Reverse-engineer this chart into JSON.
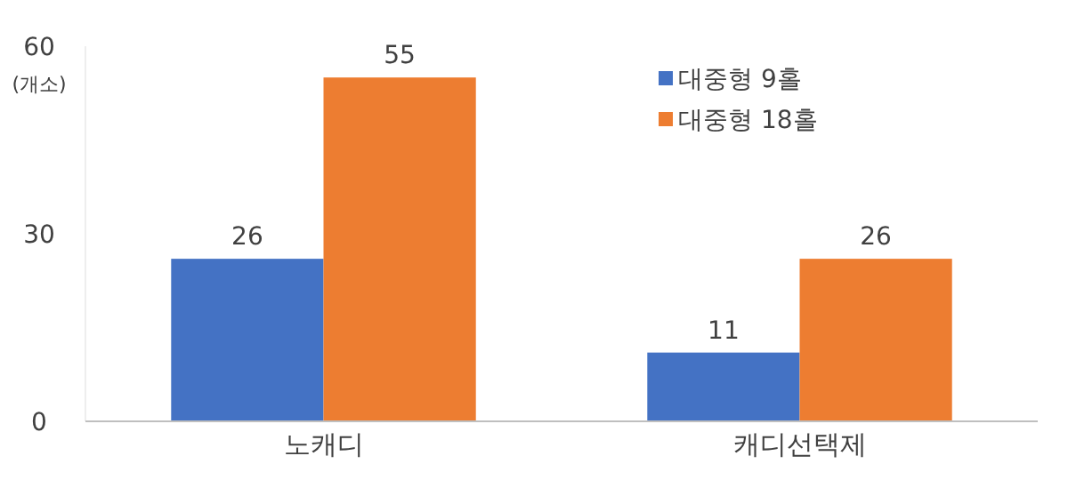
{
  "chart_data": {
    "type": "bar",
    "ylabel": "(개소)",
    "categories": [
      "노캐디",
      "캐디선택제"
    ],
    "series": [
      {
        "name": "대중형 9홀",
        "color": "#4472c4",
        "values": [
          26,
          11
        ]
      },
      {
        "name": "대중형 18홀",
        "color": "#ed7d31",
        "values": [
          55,
          26
        ]
      }
    ],
    "ylim": [
      0,
      60
    ],
    "yticks": [
      0,
      30,
      60
    ],
    "grid": false,
    "legend": "top right",
    "data_labels": true
  }
}
